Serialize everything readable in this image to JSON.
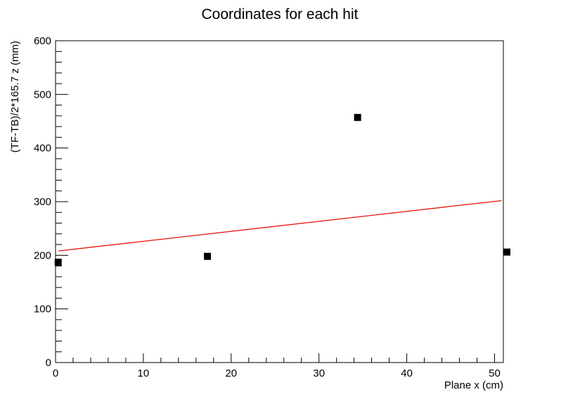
{
  "chart_data": {
    "type": "scatter",
    "title": "Coordinates for each hit",
    "xlabel": "Plane x (cm)",
    "ylabel": "(TF-TB)/2*165.7  z (mm)",
    "xlim": [
      0,
      51
    ],
    "ylim": [
      0,
      600
    ],
    "x_ticks": [
      0,
      10,
      20,
      30,
      40,
      50
    ],
    "y_ticks": [
      0,
      100,
      200,
      300,
      400,
      500,
      600
    ],
    "grid": false,
    "legend": "none",
    "series": [
      {
        "marker": "square",
        "color": "#000000",
        "points": [
          {
            "x": 0.3,
            "y": 187
          },
          {
            "x": 17.3,
            "y": 198
          },
          {
            "x": 34.4,
            "y": 457
          },
          {
            "x": 51.4,
            "y": 206
          }
        ]
      }
    ],
    "fit_line": {
      "color": "#e8160c",
      "x": [
        0.3,
        50.8
      ],
      "y": [
        208,
        302
      ]
    }
  }
}
